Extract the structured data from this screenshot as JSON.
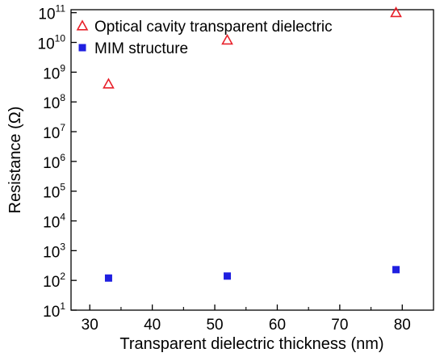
{
  "chart_data": {
    "type": "scatter",
    "xlabel": "Transparent dielectric thickness (nm)",
    "ylabel": "Resistance (Ω)",
    "xlim": [
      27,
      85
    ],
    "ylim_log10": [
      1,
      11.1
    ],
    "y_scale": "log",
    "x_ticks": [
      30,
      40,
      50,
      60,
      70,
      80
    ],
    "y_tick_exponents": [
      1,
      2,
      3,
      4,
      5,
      6,
      7,
      8,
      9,
      10,
      11
    ],
    "y_tick_base": "10",
    "grid": false,
    "legend_position": "top-left",
    "series": [
      {
        "name": "Optical cavity transparent dielectric",
        "marker": "open-triangle",
        "color": "#e8202a",
        "x": [
          33,
          52,
          79
        ],
        "y": [
          400000000,
          12000000000,
          100000000000
        ]
      },
      {
        "name": "MIM structure",
        "marker": "filled-square",
        "color": "#1f1fe0",
        "x": [
          33,
          52,
          79
        ],
        "y": [
          120,
          140,
          230
        ]
      }
    ]
  }
}
